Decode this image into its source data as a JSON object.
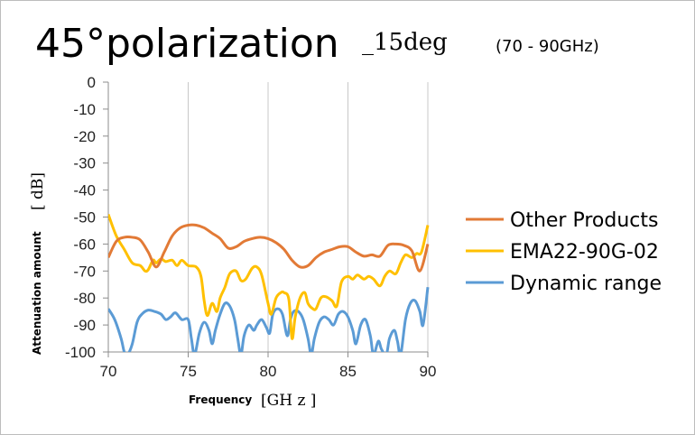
{
  "chart_data": {
    "type": "line",
    "title": "45°polarization",
    "title_suffix": "_15deg",
    "title_range": "(70 - 90GHz)",
    "xlabel": "Frequency",
    "xlabel_unit": "[GH z ]",
    "ylabel": "Attenuation amount",
    "ylabel_unit": "[ dB]",
    "xlim": [
      70,
      90
    ],
    "ylim": [
      -100,
      0
    ],
    "xticks": [
      70,
      75,
      80,
      85,
      90
    ],
    "yticks": [
      0,
      -10,
      -20,
      -30,
      -40,
      -50,
      -60,
      -70,
      -80,
      -90,
      -100
    ],
    "grid": "vertical",
    "legend_position": "right",
    "series": [
      {
        "name": "Other Products",
        "color": "#E27A36",
        "points": [
          [
            70,
            -65
          ],
          [
            70.5,
            -59
          ],
          [
            71,
            -57.5
          ],
          [
            71.5,
            -57.5
          ],
          [
            72,
            -58.5
          ],
          [
            72.5,
            -63
          ],
          [
            73,
            -68.5
          ],
          [
            73.5,
            -63
          ],
          [
            74,
            -57
          ],
          [
            74.5,
            -54
          ],
          [
            75,
            -53
          ],
          [
            75.5,
            -53
          ],
          [
            76,
            -54
          ],
          [
            76.5,
            -56
          ],
          [
            77,
            -58
          ],
          [
            77.5,
            -61.5
          ],
          [
            78,
            -61
          ],
          [
            78.5,
            -59
          ],
          [
            79,
            -58
          ],
          [
            79.5,
            -57.5
          ],
          [
            80,
            -58
          ],
          [
            80.5,
            -59.5
          ],
          [
            81,
            -62
          ],
          [
            81.5,
            -66
          ],
          [
            82,
            -68.5
          ],
          [
            82.5,
            -68
          ],
          [
            83,
            -65
          ],
          [
            83.5,
            -63
          ],
          [
            84,
            -62
          ],
          [
            84.5,
            -61
          ],
          [
            85,
            -61
          ],
          [
            85.5,
            -63
          ],
          [
            86,
            -64.5
          ],
          [
            86.5,
            -64
          ],
          [
            87,
            -64.5
          ],
          [
            87.5,
            -60.5
          ],
          [
            88,
            -60
          ],
          [
            88.5,
            -60.5
          ],
          [
            89,
            -62.5
          ],
          [
            89.5,
            -70
          ],
          [
            90,
            -60
          ]
        ]
      },
      {
        "name": "EMA22-90G-02",
        "color": "#FFC000",
        "points": [
          [
            70,
            -49
          ],
          [
            70.5,
            -57
          ],
          [
            71,
            -62
          ],
          [
            71.5,
            -67
          ],
          [
            72,
            -68
          ],
          [
            72.3,
            -70
          ],
          [
            72.5,
            -69.5
          ],
          [
            72.8,
            -66
          ],
          [
            73,
            -67
          ],
          [
            73.3,
            -65.5
          ],
          [
            73.6,
            -66.5
          ],
          [
            74,
            -66
          ],
          [
            74.3,
            -68
          ],
          [
            74.6,
            -66
          ],
          [
            75,
            -68
          ],
          [
            75.5,
            -68.5
          ],
          [
            75.8,
            -72
          ],
          [
            76,
            -81
          ],
          [
            76.2,
            -86.5
          ],
          [
            76.5,
            -82
          ],
          [
            76.8,
            -85
          ],
          [
            77,
            -80
          ],
          [
            77.3,
            -76
          ],
          [
            77.6,
            -71
          ],
          [
            78,
            -70
          ],
          [
            78.3,
            -73.5
          ],
          [
            78.6,
            -73
          ],
          [
            79,
            -69
          ],
          [
            79.3,
            -68.5
          ],
          [
            79.6,
            -71.5
          ],
          [
            80,
            -82
          ],
          [
            80.2,
            -86
          ],
          [
            80.5,
            -80
          ],
          [
            80.8,
            -78
          ],
          [
            81,
            -78
          ],
          [
            81.3,
            -80.5
          ],
          [
            81.5,
            -95
          ],
          [
            81.7,
            -87
          ],
          [
            82,
            -80
          ],
          [
            82.3,
            -78
          ],
          [
            82.5,
            -82
          ],
          [
            82.8,
            -84
          ],
          [
            83,
            -84
          ],
          [
            83.3,
            -80
          ],
          [
            83.6,
            -79.5
          ],
          [
            84,
            -81
          ],
          [
            84.3,
            -83
          ],
          [
            84.6,
            -74
          ],
          [
            85,
            -72
          ],
          [
            85.3,
            -73
          ],
          [
            85.6,
            -71.5
          ],
          [
            86,
            -73
          ],
          [
            86.3,
            -72
          ],
          [
            86.6,
            -73
          ],
          [
            87,
            -75.5
          ],
          [
            87.3,
            -72
          ],
          [
            87.6,
            -70
          ],
          [
            88,
            -71
          ],
          [
            88.3,
            -67
          ],
          [
            88.6,
            -64
          ],
          [
            89,
            -65
          ],
          [
            89.3,
            -63.5
          ],
          [
            89.6,
            -63
          ],
          [
            90,
            -53
          ]
        ]
      },
      {
        "name": "Dynamic range",
        "color": "#5B9BD5",
        "points": [
          [
            70,
            -84
          ],
          [
            70.4,
            -88
          ],
          [
            70.8,
            -95
          ],
          [
            71,
            -100
          ],
          [
            71.2,
            -101
          ],
          [
            71.5,
            -97
          ],
          [
            71.8,
            -89
          ],
          [
            72.1,
            -86
          ],
          [
            72.5,
            -84.5
          ],
          [
            72.9,
            -85
          ],
          [
            73.3,
            -86
          ],
          [
            73.6,
            -88
          ],
          [
            73.9,
            -87
          ],
          [
            74.2,
            -85.5
          ],
          [
            74.6,
            -88
          ],
          [
            75,
            -88
          ],
          [
            75.2,
            -95
          ],
          [
            75.4,
            -101
          ],
          [
            75.7,
            -93
          ],
          [
            76,
            -89
          ],
          [
            76.3,
            -92
          ],
          [
            76.5,
            -97
          ],
          [
            76.7,
            -92
          ],
          [
            77,
            -86
          ],
          [
            77.3,
            -82
          ],
          [
            77.6,
            -83
          ],
          [
            77.9,
            -88
          ],
          [
            78.1,
            -95
          ],
          [
            78.3,
            -101
          ],
          [
            78.5,
            -94
          ],
          [
            78.8,
            -90
          ],
          [
            79.1,
            -92
          ],
          [
            79.3,
            -90
          ],
          [
            79.6,
            -88
          ],
          [
            79.9,
            -91
          ],
          [
            80.1,
            -93
          ],
          [
            80.3,
            -86
          ],
          [
            80.6,
            -84
          ],
          [
            80.9,
            -86
          ],
          [
            81.2,
            -94
          ],
          [
            81.4,
            -88
          ],
          [
            81.6,
            -85
          ],
          [
            81.9,
            -85
          ],
          [
            82.2,
            -88
          ],
          [
            82.5,
            -95
          ],
          [
            82.7,
            -101
          ],
          [
            82.9,
            -95
          ],
          [
            83.2,
            -89
          ],
          [
            83.5,
            -87
          ],
          [
            83.8,
            -88
          ],
          [
            84.1,
            -90
          ],
          [
            84.4,
            -86
          ],
          [
            84.7,
            -85
          ],
          [
            85,
            -87
          ],
          [
            85.3,
            -92
          ],
          [
            85.5,
            -97
          ],
          [
            85.8,
            -90
          ],
          [
            86.1,
            -88
          ],
          [
            86.4,
            -94
          ],
          [
            86.6,
            -101
          ],
          [
            86.9,
            -96
          ],
          [
            87.1,
            -99
          ],
          [
            87.4,
            -101
          ],
          [
            87.6,
            -95
          ],
          [
            87.9,
            -92
          ],
          [
            88.1,
            -96
          ],
          [
            88.3,
            -101
          ],
          [
            88.6,
            -88
          ],
          [
            88.9,
            -82
          ],
          [
            89.2,
            -81
          ],
          [
            89.5,
            -85
          ],
          [
            89.7,
            -90
          ],
          [
            90,
            -76
          ]
        ]
      }
    ]
  }
}
